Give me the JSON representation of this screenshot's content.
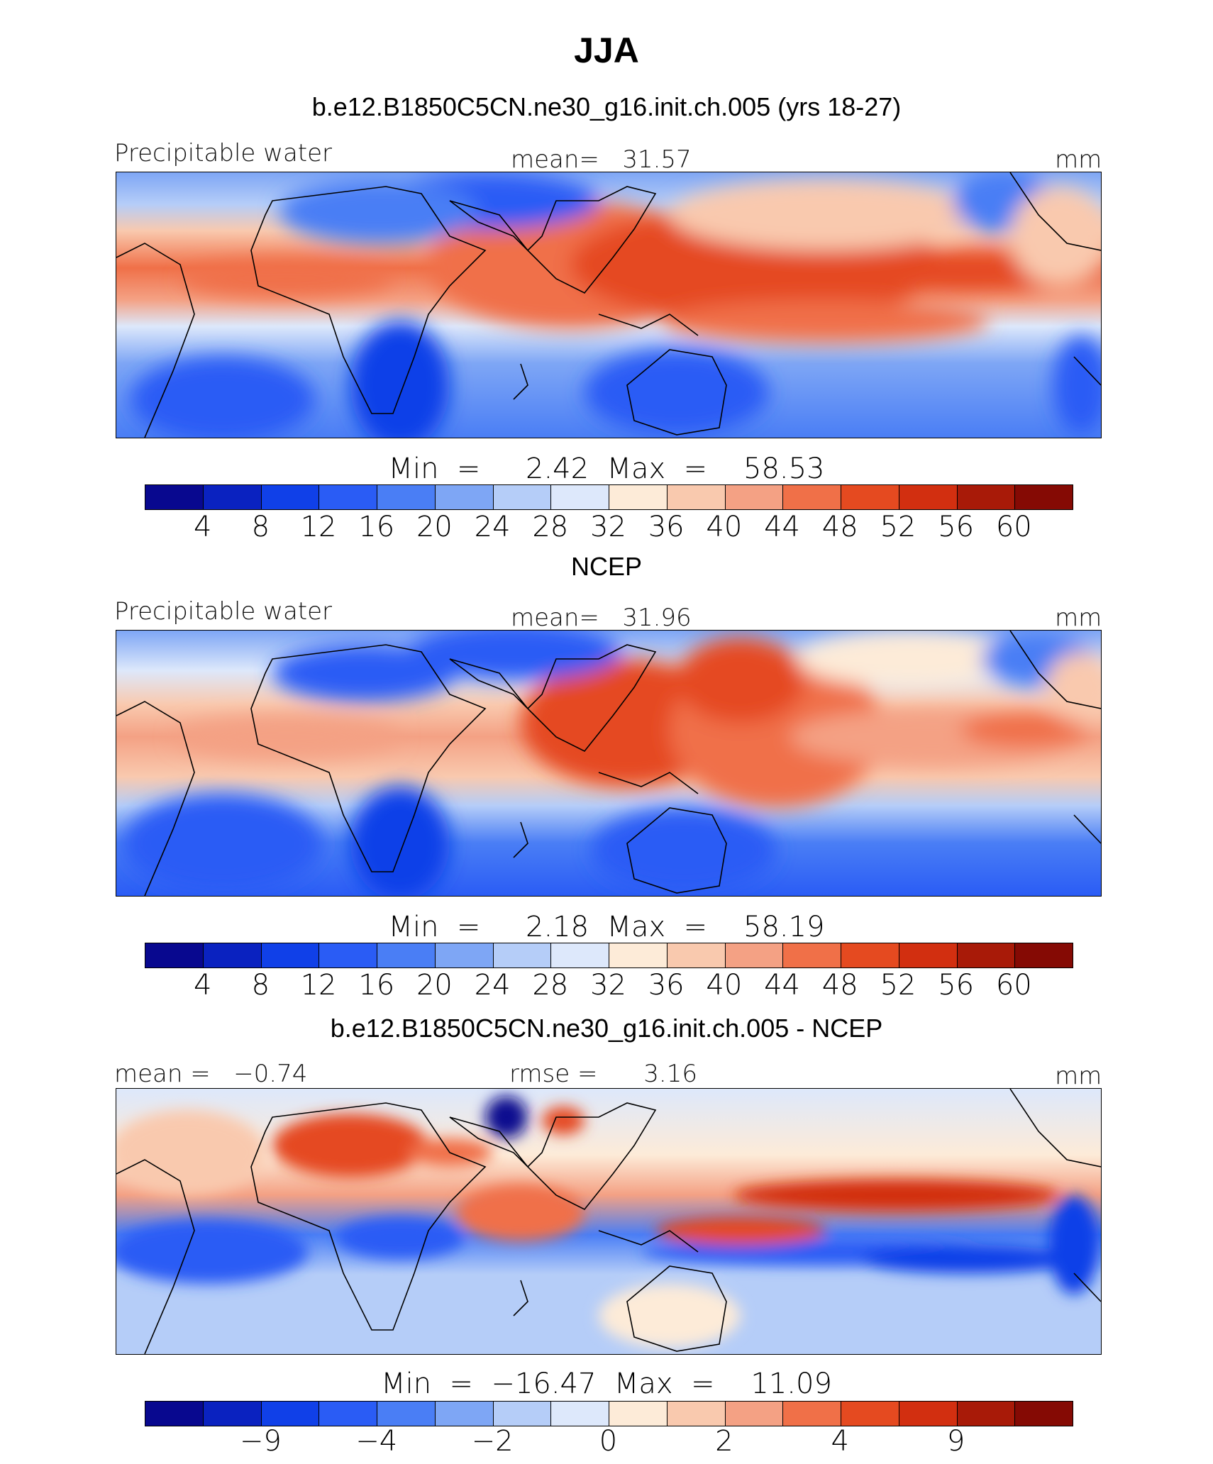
{
  "title": "JJA",
  "colors": [
    "#08088f",
    "#0a22c0",
    "#1040e8",
    "#2a5cf5",
    "#4a7ef5",
    "#7ea6f5",
    "#b5cdf8",
    "#dde8fb",
    "#fdebd8",
    "#f9c9ae",
    "#f4a184",
    "#f07048",
    "#e54a20",
    "#d22f10",
    "#a81a08",
    "#850a04"
  ],
  "panels": [
    {
      "subtitle": "b.e12.B1850C5CN.ne30_g16.init.ch.005 (yrs 18-27)",
      "left_label": "Precipitable water",
      "center_label": "mean=   31.57",
      "right_label": "mm",
      "minmax": "Min  =     2.42  Max  =    58.53",
      "ticks": [
        "4",
        "8",
        "12",
        "16",
        "20",
        "24",
        "28",
        "32",
        "36",
        "40",
        "44",
        "48",
        "52",
        "56",
        "60"
      ]
    },
    {
      "subtitle": "NCEP",
      "left_label": "Precipitable water",
      "center_label": "mean=   31.96",
      "right_label": "mm",
      "minmax": "Min  =     2.18  Max  =    58.19",
      "ticks": [
        "4",
        "8",
        "12",
        "16",
        "20",
        "24",
        "28",
        "32",
        "36",
        "40",
        "44",
        "48",
        "52",
        "56",
        "60"
      ]
    },
    {
      "subtitle": "b.e12.B1850C5CN.ne30_g16.init.ch.005 - NCEP",
      "left_label": "mean =   −0.74",
      "center_label": "rmse =      3.16",
      "right_label": "mm",
      "minmax": "Min  =  −16.47  Max  =    11.09",
      "ticks": [
        "−9",
        "−4",
        "−2",
        "0",
        "2",
        "4",
        "9"
      ]
    }
  ],
  "chart_data": [
    {
      "type": "heatmap",
      "title": "b.e12.B1850C5CN.ne30_g16.init.ch.005 (yrs 18-27)",
      "variable": "Precipitable water",
      "units": "mm",
      "mean": 31.57,
      "min": 2.42,
      "max": 58.53,
      "levels": [
        4,
        8,
        12,
        16,
        20,
        24,
        28,
        32,
        36,
        40,
        44,
        48,
        52,
        56,
        60
      ]
    },
    {
      "type": "heatmap",
      "title": "NCEP",
      "variable": "Precipitable water",
      "units": "mm",
      "mean": 31.96,
      "min": 2.18,
      "max": 58.19,
      "levels": [
        4,
        8,
        12,
        16,
        20,
        24,
        28,
        32,
        36,
        40,
        44,
        48,
        52,
        56,
        60
      ]
    },
    {
      "type": "heatmap",
      "title": "b.e12.B1850C5CN.ne30_g16.init.ch.005 - NCEP",
      "units": "mm",
      "mean": -0.74,
      "rmse": 3.16,
      "min": -16.47,
      "max": 11.09,
      "levels": [
        -9,
        -4,
        -2,
        0,
        2,
        4,
        9
      ]
    }
  ]
}
